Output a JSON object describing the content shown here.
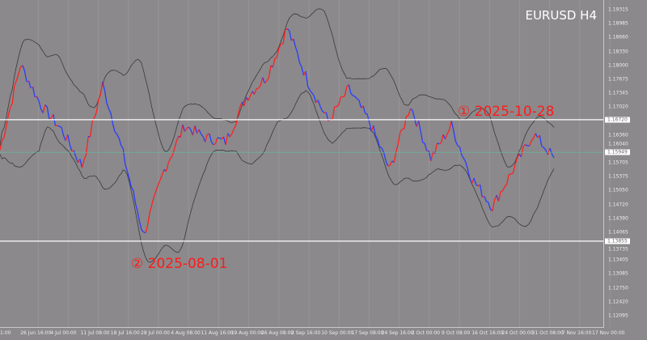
{
  "chart_data": {
    "type": "line",
    "title": "EURUSD  H4",
    "symbol": "EURUSD",
    "timeframe": "H4",
    "values": [
      1.1601,
      1.1802,
      1.1706,
      1.1649,
      1.1563,
      1.1754,
      1.1591,
      1.14,
      1.1553,
      1.1658,
      1.163,
      1.162,
      1.1725,
      1.1773,
      1.1888,
      1.1763,
      1.1668,
      1.1744,
      1.1668,
      1.1553,
      1.1706,
      1.1582,
      1.1658,
      1.1534,
      1.1467,
      1.1553,
      1.1639,
      1.1582
    ],
    "ylim": [
      1.12095,
      1.19315
    ],
    "price_labels": [
      "1.19315",
      "1.18985",
      "1.18660",
      "1.18330",
      "1.18000",
      "1.17675",
      "1.17345",
      "1.17020",
      "1.16360",
      "1.16040",
      "1.15705",
      "1.15375",
      "1.15050",
      "1.14720",
      "1.14390",
      "1.14065",
      "1.13735",
      "1.13405",
      "1.13085",
      "1.12750",
      "1.12420",
      "1.12095"
    ],
    "horizontal_lines": [
      {
        "price": 1.1672,
        "label": "1.16720"
      },
      {
        "price": 1.13855,
        "label": "1.13855"
      }
    ],
    "current_price": {
      "price": 1.15949,
      "label": "1.15949"
    },
    "time_labels": [
      "1:00",
      "26 Jun 16:00",
      "4 Jul 00:00",
      "11 Jul 08:00",
      "18 Jul 16:00",
      "28 Jul 00:00",
      "4 Aug 08:00",
      "11 Aug 16:00",
      "19 Aug 00:00",
      "26 Aug 08:00",
      "2 Sep 16:00",
      "10 Sep 00:00",
      "17 Sep 08:00",
      "24 Sep 16:00",
      "2 Oct 00:00",
      "9 Oct 08:00",
      "16 Oct 16:00",
      "24 Oct 00:00",
      "31 Oct 08:00",
      "7 Nov 16:00",
      "17 Nov 00:00"
    ],
    "annotations": [
      {
        "text": "① 2025-10-28"
      },
      {
        "text": "② 2025-08-01"
      }
    ],
    "colors": {
      "up": "#ff2020",
      "down": "#2a3cff",
      "bands": "#3a3a3a",
      "hline": "#ffffff",
      "current": "#5fbfa0",
      "background": "#8b898b"
    },
    "grid": true
  }
}
